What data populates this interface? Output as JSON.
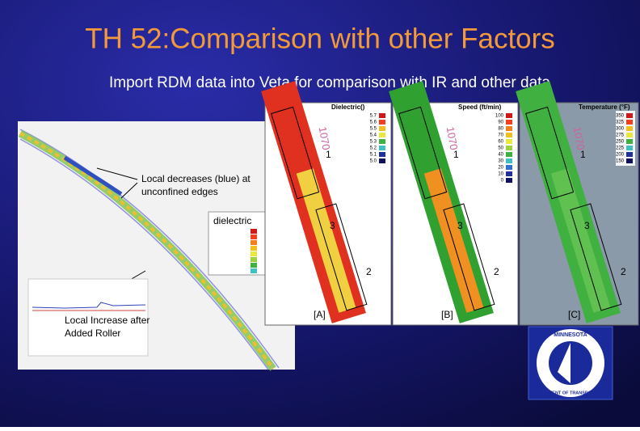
{
  "header": {
    "title": "TH 52:Comparison with other Factors",
    "subtitle": "Import RDM data into Veta for comparison with IR and other data"
  },
  "left_figure": {
    "annotation": [
      "Local decreases (blue) at",
      "unconfined edges"
    ],
    "legend_title": "dielectric",
    "inset_annotation": [
      "Local Increase after",
      "Added Roller"
    ]
  },
  "panels": [
    {
      "title": "Dielectric()",
      "label": "[A]",
      "station": "1070",
      "legend": [
        "5.7",
        "5.6",
        "5.5",
        "5.4",
        "5.3",
        "5.2",
        "5.1",
        "5.0"
      ]
    },
    {
      "title": "Speed (ft/min)",
      "label": "[B]",
      "station": "1070",
      "legend": [
        "100",
        "90",
        "80",
        "70",
        "60",
        "50",
        "40",
        "30",
        "20",
        "10",
        "0"
      ]
    },
    {
      "title": "Temperature (°F)",
      "label": "[C]",
      "station": "1070",
      "legend": [
        "350",
        "325",
        "300",
        "275",
        "250",
        "225",
        "200",
        "150"
      ]
    }
  ],
  "zone_labels": [
    "1",
    "3",
    "2"
  ],
  "logo": {
    "top": "MINNESOTA",
    "bottom": "DEPARTMENT OF TRANSPORTATION"
  }
}
